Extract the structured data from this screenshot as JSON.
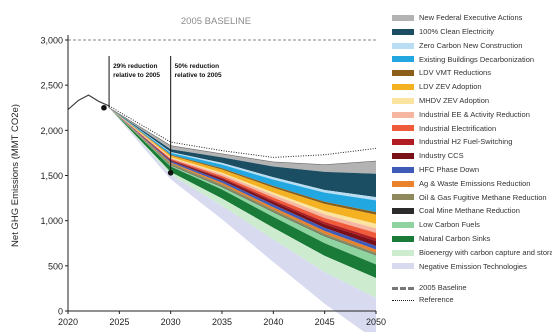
{
  "chart_data": {
    "type": "area",
    "title": "2005 BASELINE",
    "ylabel": "Net GHG Emissions (MMT CO2e)",
    "xlabel": "",
    "xlim": [
      2020,
      2050
    ],
    "ylim": [
      0,
      3000
    ],
    "x_ticks": [
      2020,
      2025,
      2030,
      2035,
      2040,
      2045,
      2050
    ],
    "y_ticks": [
      0,
      500,
      1000,
      1500,
      2000,
      2500,
      3000
    ],
    "y_tick_labels": [
      "0",
      "500",
      "1,000",
      "1,500",
      "2,000",
      "2,500",
      "3,000"
    ],
    "x": [
      2030,
      2035,
      2040,
      2045,
      2050
    ],
    "history": {
      "x": [
        2020,
        2021,
        2022,
        2023,
        2024
      ],
      "y": [
        2230,
        2330,
        2390,
        2320,
        2270
      ]
    },
    "reference": {
      "name": "Reference",
      "y": [
        1870,
        1775,
        1700,
        1730,
        1800
      ]
    },
    "baseline": {
      "name": "2005 Baseline",
      "value": 3000
    },
    "top": {
      "x": [
        2024,
        2030,
        2035,
        2040,
        2045,
        2050
      ],
      "y": [
        2250,
        1830,
        1740,
        1650,
        1620,
        1660
      ]
    },
    "series": [
      {
        "name": "New Federal Executive Actions",
        "color": "#b3b3b3",
        "values": [
          40,
          40,
          50,
          80,
          140
        ]
      },
      {
        "name": "100% Clean Electricity",
        "color": "#1c4e63",
        "values": [
          30,
          60,
          120,
          200,
          260
        ]
      },
      {
        "name": "Zero Carbon New Construction",
        "color": "#b9def3",
        "values": [
          10,
          20,
          25,
          30,
          35
        ]
      },
      {
        "name": "Existing Buildings Decarbonization",
        "color": "#23a7e0",
        "values": [
          20,
          40,
          70,
          100,
          130
        ]
      },
      {
        "name": "LDV VMT Reductions",
        "color": "#8b5e1a",
        "values": [
          8,
          15,
          20,
          25,
          30
        ]
      },
      {
        "name": "LDV ZEV Adoption",
        "color": "#f4b223",
        "values": [
          20,
          35,
          55,
          80,
          100
        ]
      },
      {
        "name": "MHDV ZEV Adoption",
        "color": "#fbe3a0",
        "values": [
          8,
          15,
          25,
          35,
          50
        ]
      },
      {
        "name": "Industrial EE & Activity Reduction",
        "color": "#f5b7a1",
        "values": [
          10,
          20,
          30,
          40,
          50
        ]
      },
      {
        "name": "Industrial Electrification",
        "color": "#ef5b3b",
        "values": [
          10,
          20,
          30,
          45,
          60
        ]
      },
      {
        "name": "Industrial H2 Fuel-Switching",
        "color": "#b01e23",
        "values": [
          5,
          10,
          18,
          25,
          30
        ]
      },
      {
        "name": "Industry CCS",
        "color": "#7a1018",
        "values": [
          10,
          20,
          30,
          40,
          55
        ]
      },
      {
        "name": "HFC Phase Down",
        "color": "#3f5bb8",
        "values": [
          15,
          25,
          30,
          35,
          40
        ]
      },
      {
        "name": "Ag & Waste Emissions Reduction",
        "color": "#e9822b",
        "values": [
          10,
          20,
          25,
          30,
          35
        ]
      },
      {
        "name": "Oil & Gas Fugitive Methane Reduction",
        "color": "#8f8a5e",
        "values": [
          20,
          25,
          25,
          25,
          25
        ]
      },
      {
        "name": "Coal Mine Methane Reduction",
        "color": "#2b2b2b",
        "values": [
          5,
          5,
          5,
          5,
          5
        ]
      },
      {
        "name": "Low Carbon Fuels",
        "color": "#8fd3a0",
        "values": [
          10,
          25,
          50,
          75,
          100
        ]
      },
      {
        "name": "Natural Carbon Sinks",
        "color": "#1a7a37",
        "values": [
          60,
          100,
          120,
          140,
          150
        ]
      },
      {
        "name": "Bioenergy with carbon capture and storage",
        "color": "#cdeccf",
        "values": [
          30,
          80,
          130,
          180,
          220
        ]
      },
      {
        "name": "Negative Emission Technologies",
        "color": "#d8daf0",
        "values": [
          50,
          150,
          250,
          350,
          470
        ]
      }
    ],
    "points": [
      {
        "x": 2023.5,
        "y": 2250
      },
      {
        "x": 2030,
        "y": 1530
      }
    ],
    "annotations": [
      {
        "lines": [
          "29% reduction",
          "relative to 2005"
        ],
        "x": 2024
      },
      {
        "lines": [
          "50% reduction",
          "relative to 2005"
        ],
        "x": 2030
      }
    ],
    "legend_position": "right",
    "grid": false
  }
}
